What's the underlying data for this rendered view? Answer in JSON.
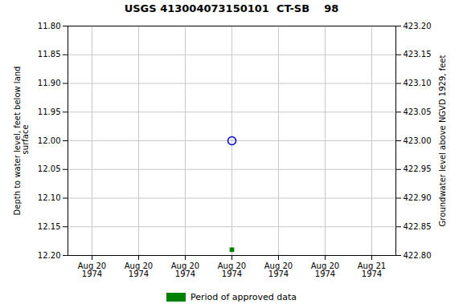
{
  "chart_data": {
    "type": "scatter",
    "title": "USGS 413004073150101  CT-SB    98",
    "categories": [
      "Aug 20\n1974",
      "Aug 20\n1974",
      "Aug 20\n1974",
      "Aug 20\n1974",
      "Aug 20\n1974",
      "Aug 20\n1974",
      "Aug 21\n1974"
    ],
    "ylabel": "Depth to water level, feet below land\n surface",
    "y2label": "Groundwater level above NGVD 1929, feet",
    "series": [
      {
        "color": "#0000cc",
        "marker": "circle-open",
        "values": [
          null,
          null,
          null,
          12.0,
          null,
          null,
          null
        ]
      },
      {
        "name": "Period of approved data",
        "color": "#008000",
        "marker": "square",
        "values": [
          null,
          null,
          null,
          12.19,
          null,
          null,
          null
        ]
      }
    ],
    "ylim": [
      12.2,
      11.8
    ],
    "yticks": [
      {
        "value": 11.8,
        "label": "11.80"
      },
      11.85,
      {
        "value": 11.9,
        "label": "11.90"
      },
      11.95,
      {
        "value": 12.0,
        "label": "12.00"
      },
      12.05,
      {
        "value": 12.1,
        "label": "12.10"
      },
      12.15,
      {
        "value": 12.2,
        "label": "12.20"
      }
    ],
    "y2lim": [
      422.8,
      423.2
    ],
    "y2ticks": [
      {
        "value": 423.2,
        "label": "423.20"
      },
      423.15,
      {
        "value": 423.1,
        "label": "423.10"
      },
      423.05,
      {
        "value": 423.0,
        "label": "423.00"
      },
      422.95,
      {
        "value": 422.9,
        "label": "422.90"
      },
      422.85,
      {
        "value": 422.8,
        "label": "422.80"
      }
    ],
    "grid": true,
    "legend": "bottom"
  }
}
